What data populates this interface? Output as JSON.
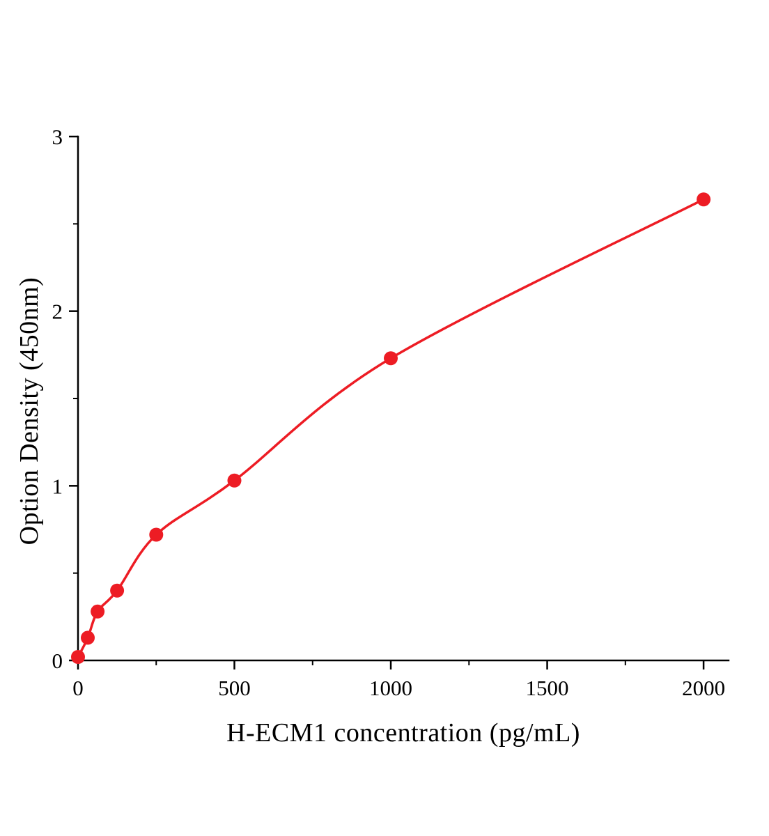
{
  "figure": {
    "background": "#ffffff"
  },
  "chart_data": {
    "type": "scatter",
    "title": "",
    "xlabel": "H-ECM1 concentration (pg/mL)",
    "ylabel": "Option Density (450nm)",
    "x": [
      0,
      31.25,
      62.5,
      125,
      250,
      500,
      1000,
      2000
    ],
    "y": [
      0.02,
      0.13,
      0.28,
      0.4,
      0.72,
      1.03,
      1.73,
      2.64
    ],
    "xlim": [
      0,
      2080
    ],
    "ylim": [
      0,
      3
    ],
    "x_major_ticks": [
      0,
      500,
      1000,
      1500,
      2000
    ],
    "x_minor_ticks": [
      250,
      750,
      1250,
      1750
    ],
    "y_major_ticks": [
      0,
      1,
      2,
      3
    ],
    "y_minor_ticks": [
      0.5,
      1.5,
      2.5
    ],
    "grid": false,
    "legend_position": "none",
    "curve_color": "#ed1c24",
    "point_color": "#ed1c24",
    "axis_color": "#000000",
    "curve_type": "smooth-fit"
  }
}
